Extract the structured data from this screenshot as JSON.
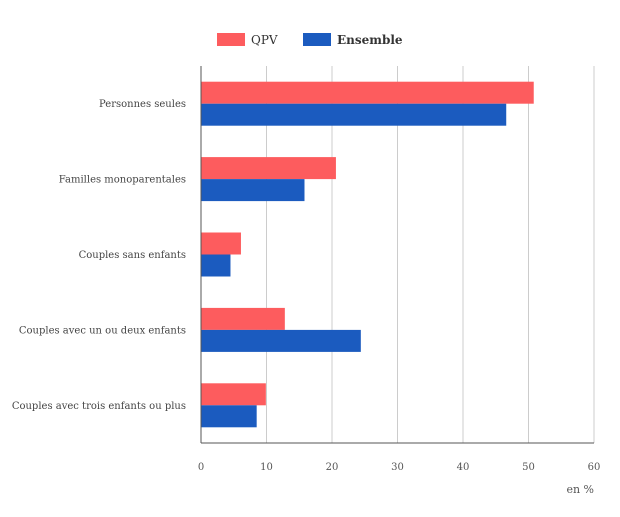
{
  "chart_data": {
    "type": "bar",
    "orientation": "horizontal",
    "categories": [
      "Personnes seules",
      "Familles monoparentales",
      "Couples sans enfants",
      "Couples avec un ou deux enfants",
      "Couples avec trois enfants ou plus"
    ],
    "series": [
      {
        "name": "QPV",
        "color": "#fd5c5e",
        "values": [
          50.8,
          20.6,
          6.1,
          12.8,
          9.9
        ]
      },
      {
        "name": "Ensemble",
        "color": "#1b5bbf",
        "values": [
          46.6,
          15.8,
          4.5,
          24.4,
          8.5
        ]
      }
    ],
    "xlim": [
      0,
      60
    ],
    "xticks": [
      "0",
      "10",
      "20",
      "30",
      "40",
      "50",
      "60"
    ],
    "unit_label": "en %",
    "grid": "vertical",
    "legend_position": "top"
  }
}
